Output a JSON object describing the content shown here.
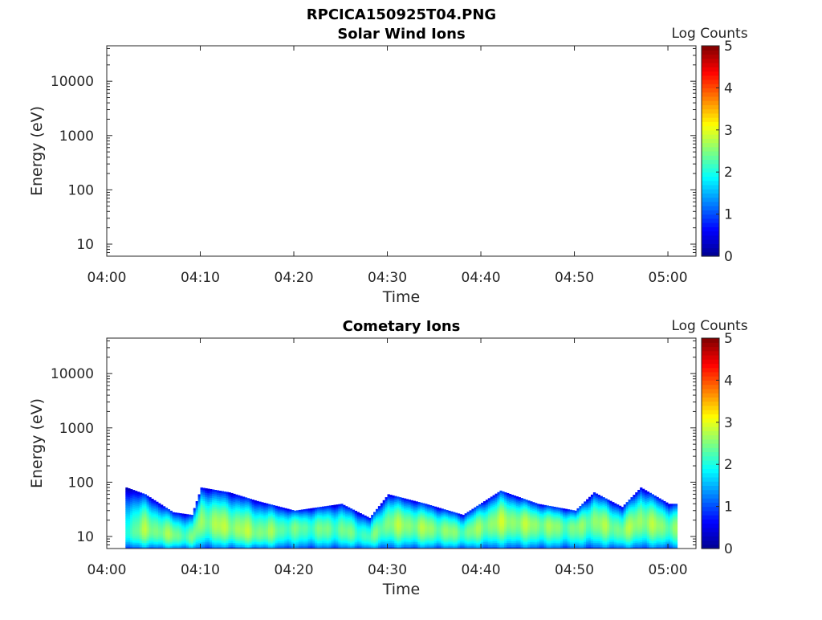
{
  "figure": {
    "title": "RPCICA150925T04.PNG"
  },
  "colors": {
    "colormap": [
      "#00008f",
      "#0000ff",
      "#007fff",
      "#00ffff",
      "#7fff7f",
      "#ffff00",
      "#ff7f00",
      "#ff0000",
      "#7f0000"
    ],
    "axis": "#262626"
  },
  "chart_data": [
    {
      "type": "heatmap",
      "title": "Solar Wind Ions",
      "xlabel": "Time",
      "ylabel": "Energy (eV)",
      "x_scale": "time",
      "y_scale": "log",
      "xlim": [
        "04:00",
        "05:03"
      ],
      "ylim": [
        6,
        45000
      ],
      "x_ticks": [
        "04:00",
        "04:10",
        "04:20",
        "04:30",
        "04:40",
        "04:50",
        "05:00"
      ],
      "y_ticks": [
        10,
        100,
        1000,
        10000
      ],
      "y_tick_labels": [
        "10",
        "100",
        "1000",
        "10000"
      ],
      "colorbar": {
        "label": "Log Counts",
        "range": [
          0,
          5
        ],
        "ticks": [
          "0",
          "1",
          "2",
          "3",
          "4",
          "5"
        ]
      },
      "data": []
    },
    {
      "type": "heatmap",
      "title": "Cometary Ions",
      "xlabel": "Time",
      "ylabel": "Energy (eV)",
      "x_scale": "time",
      "y_scale": "log",
      "xlim": [
        "04:00",
        "05:03"
      ],
      "ylim": [
        6,
        45000
      ],
      "x_ticks": [
        "04:00",
        "04:10",
        "04:20",
        "04:30",
        "04:40",
        "04:50",
        "05:00"
      ],
      "y_ticks": [
        10,
        100,
        1000,
        10000
      ],
      "y_tick_labels": [
        "10",
        "100",
        "1000",
        "10000"
      ],
      "colorbar": {
        "label": "Log Counts",
        "range": [
          0,
          5
        ],
        "ticks": [
          "0",
          "1",
          "2",
          "3",
          "4",
          "5"
        ]
      },
      "data_time_range": [
        "04:02",
        "05:01"
      ],
      "energy_profile": [
        {
          "time": "04:02",
          "upper_energy_eV": 80,
          "peak_energy_eV": 12,
          "peak_log_counts": 2.2
        },
        {
          "time": "04:04",
          "upper_energy_eV": 60,
          "peak_energy_eV": 14,
          "peak_log_counts": 2.6
        },
        {
          "time": "04:07",
          "upper_energy_eV": 28,
          "peak_energy_eV": 11,
          "peak_log_counts": 2.5
        },
        {
          "time": "04:09",
          "upper_energy_eV": 25,
          "peak_energy_eV": 10,
          "peak_log_counts": 2.3
        },
        {
          "time": "04:10",
          "upper_energy_eV": 80,
          "peak_energy_eV": 20,
          "peak_log_counts": 2.6
        },
        {
          "time": "04:13",
          "upper_energy_eV": 65,
          "peak_energy_eV": 15,
          "peak_log_counts": 2.7
        },
        {
          "time": "04:16",
          "upper_energy_eV": 45,
          "peak_energy_eV": 12,
          "peak_log_counts": 2.6
        },
        {
          "time": "04:20",
          "upper_energy_eV": 30,
          "peak_energy_eV": 15,
          "peak_log_counts": 2.3
        },
        {
          "time": "04:25",
          "upper_energy_eV": 40,
          "peak_energy_eV": 14,
          "peak_log_counts": 2.4
        },
        {
          "time": "04:28",
          "upper_energy_eV": 22,
          "peak_energy_eV": 10,
          "peak_log_counts": 2.2
        },
        {
          "time": "04:30",
          "upper_energy_eV": 60,
          "peak_energy_eV": 18,
          "peak_log_counts": 2.6
        },
        {
          "time": "04:34",
          "upper_energy_eV": 40,
          "peak_energy_eV": 15,
          "peak_log_counts": 2.6
        },
        {
          "time": "04:38",
          "upper_energy_eV": 25,
          "peak_energy_eV": 12,
          "peak_log_counts": 2.4
        },
        {
          "time": "04:42",
          "upper_energy_eV": 70,
          "peak_energy_eV": 20,
          "peak_log_counts": 2.7
        },
        {
          "time": "04:46",
          "upper_energy_eV": 40,
          "peak_energy_eV": 17,
          "peak_log_counts": 2.6
        },
        {
          "time": "04:50",
          "upper_energy_eV": 30,
          "peak_energy_eV": 15,
          "peak_log_counts": 2.4
        },
        {
          "time": "04:52",
          "upper_energy_eV": 65,
          "peak_energy_eV": 20,
          "peak_log_counts": 2.6
        },
        {
          "time": "04:55",
          "upper_energy_eV": 35,
          "peak_energy_eV": 13,
          "peak_log_counts": 2.5
        },
        {
          "time": "04:57",
          "upper_energy_eV": 80,
          "peak_energy_eV": 20,
          "peak_log_counts": 2.7
        },
        {
          "time": "05:00",
          "upper_energy_eV": 40,
          "peak_energy_eV": 15,
          "peak_log_counts": 2.5
        }
      ]
    }
  ]
}
